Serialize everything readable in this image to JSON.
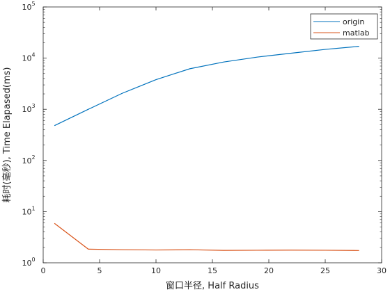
{
  "chart_data": {
    "type": "line",
    "title": "",
    "xlabel": "窗口半径, Half Radius",
    "ylabel": "耗时(毫秒), Time Elapased(ms)",
    "xlim": [
      0,
      30
    ],
    "ylim": [
      1,
      100000
    ],
    "yscale": "log",
    "grid": false,
    "legend_position": "top-right",
    "x_ticks": [
      0,
      5,
      10,
      15,
      20,
      25,
      30
    ],
    "y_ticks": [
      {
        "base": "10",
        "exp": "0",
        "value": 1
      },
      {
        "base": "10",
        "exp": "1",
        "value": 10
      },
      {
        "base": "10",
        "exp": "2",
        "value": 100
      },
      {
        "base": "10",
        "exp": "3",
        "value": 1000
      },
      {
        "base": "10",
        "exp": "4",
        "value": 10000
      },
      {
        "base": "10",
        "exp": "5",
        "value": 100000
      }
    ],
    "series": [
      {
        "name": "origin",
        "color": "#0072bd",
        "points": [
          [
            1,
            480
          ],
          [
            4,
            1000
          ],
          [
            7,
            2050
          ],
          [
            10,
            3800
          ],
          [
            13,
            6200
          ],
          [
            16,
            8400
          ],
          [
            19,
            10500
          ],
          [
            22,
            12500
          ],
          [
            25,
            14800
          ],
          [
            28,
            17000
          ]
        ]
      },
      {
        "name": "matlab",
        "color": "#d95319",
        "points": [
          [
            1,
            5.9
          ],
          [
            4,
            1.85
          ],
          [
            7,
            1.8
          ],
          [
            10,
            1.78
          ],
          [
            13,
            1.8
          ],
          [
            16,
            1.75
          ],
          [
            19,
            1.76
          ],
          [
            22,
            1.77
          ],
          [
            25,
            1.76
          ],
          [
            28,
            1.74
          ]
        ]
      }
    ]
  }
}
